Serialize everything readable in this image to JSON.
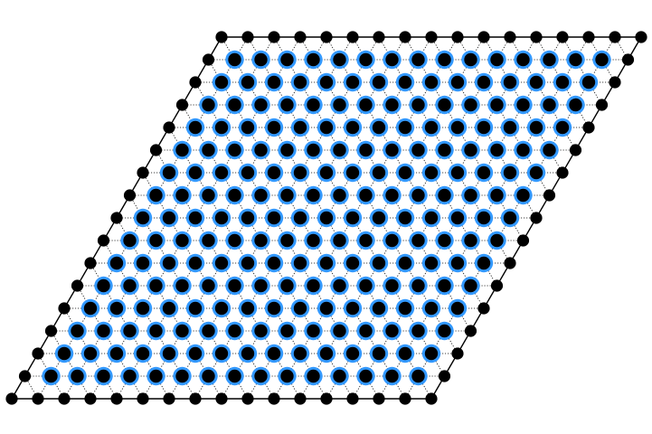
{
  "lattice": {
    "kind": "triangular",
    "rows": 17,
    "cols": 17,
    "colors": {
      "node_fill": "#000000",
      "ring_color": "#3399ff",
      "boundary_line": "#000000",
      "interior_line": "#000000",
      "background": "#ffffff"
    }
  }
}
